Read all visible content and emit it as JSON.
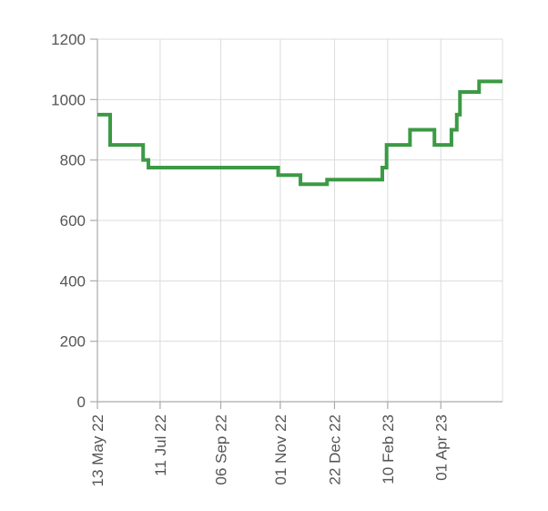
{
  "chart_data": {
    "type": "line",
    "interpolation": "step-after",
    "title": "",
    "xlabel": "",
    "ylabel": "",
    "ylim": [
      0,
      1200
    ],
    "yticks": [
      0,
      200,
      400,
      600,
      800,
      1000,
      1200
    ],
    "xlim": [
      "2022-05-13",
      "2023-05-29"
    ],
    "xticks": [
      {
        "date": "2022-05-13",
        "label": "13 May 22"
      },
      {
        "date": "2022-07-11",
        "label": "11 Jul 22"
      },
      {
        "date": "2022-09-06",
        "label": "06 Sep 22"
      },
      {
        "date": "2022-11-01",
        "label": "01 Nov 22"
      },
      {
        "date": "2022-12-22",
        "label": "22 Dec 22"
      },
      {
        "date": "2023-02-10",
        "label": "10 Feb 23"
      },
      {
        "date": "2023-04-01",
        "label": "01 Apr 23"
      }
    ],
    "grid": true,
    "colors": {
      "series": "#3b9a44",
      "grid": "#dcdcdc",
      "axis": "#aaaaaa",
      "text": "#555555"
    },
    "series": [
      {
        "x": [
          "2022-05-13",
          "2022-05-25",
          "2022-06-25",
          "2022-06-30",
          "2022-10-30",
          "2022-11-20",
          "2022-12-15",
          "2023-02-05",
          "2023-02-09",
          "2023-03-03",
          "2023-03-26",
          "2023-04-11",
          "2023-04-16",
          "2023-04-19",
          "2023-05-07",
          "2023-05-29"
        ],
        "y": [
          950,
          850,
          800,
          775,
          750,
          720,
          735,
          775,
          850,
          900,
          850,
          900,
          950,
          1025,
          1060,
          1060
        ]
      }
    ]
  }
}
